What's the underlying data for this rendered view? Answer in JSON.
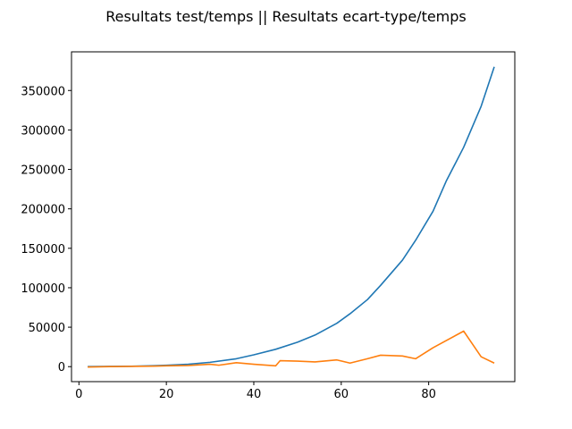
{
  "chart_data": {
    "type": "line",
    "title": "Resultats test/temps || Resultats ecart-type/temps",
    "xlabel": "",
    "ylabel": "",
    "xlim": [
      -1.7,
      99.7
    ],
    "ylim": [
      -19000,
      399000
    ],
    "x_ticks": [
      0,
      20,
      40,
      60,
      80
    ],
    "y_ticks": [
      0,
      50000,
      100000,
      150000,
      200000,
      250000,
      300000,
      350000
    ],
    "grid": false,
    "legend": "none",
    "series": [
      {
        "color": "#1f77b4",
        "points": [
          [
            2,
            0
          ],
          [
            7,
            300
          ],
          [
            12,
            500
          ],
          [
            17,
            1200
          ],
          [
            20,
            1800
          ],
          [
            25,
            3000
          ],
          [
            30,
            5500
          ],
          [
            36,
            10000
          ],
          [
            40,
            15000
          ],
          [
            45,
            22000
          ],
          [
            50,
            31000
          ],
          [
            54,
            40000
          ],
          [
            59,
            55000
          ],
          [
            62,
            67000
          ],
          [
            66,
            85000
          ],
          [
            69,
            103000
          ],
          [
            74,
            135000
          ],
          [
            77,
            160000
          ],
          [
            81,
            197000
          ],
          [
            84,
            235000
          ],
          [
            88,
            278000
          ],
          [
            92,
            330000
          ],
          [
            95,
            380000
          ]
        ]
      },
      {
        "color": "#ff7f0e",
        "points": [
          [
            2,
            -500
          ],
          [
            7,
            0
          ],
          [
            12,
            300
          ],
          [
            17,
            600
          ],
          [
            20,
            1000
          ],
          [
            25,
            1500
          ],
          [
            30,
            3000
          ],
          [
            32,
            1800
          ],
          [
            36,
            5000
          ],
          [
            40,
            3000
          ],
          [
            45,
            1000
          ],
          [
            46,
            7500
          ],
          [
            50,
            7000
          ],
          [
            54,
            6000
          ],
          [
            59,
            8500
          ],
          [
            62,
            4500
          ],
          [
            66,
            10000
          ],
          [
            69,
            14500
          ],
          [
            74,
            13500
          ],
          [
            77,
            10000
          ],
          [
            81,
            24000
          ],
          [
            88,
            45000
          ],
          [
            92,
            12500
          ],
          [
            95,
            4500
          ]
        ]
      }
    ]
  }
}
